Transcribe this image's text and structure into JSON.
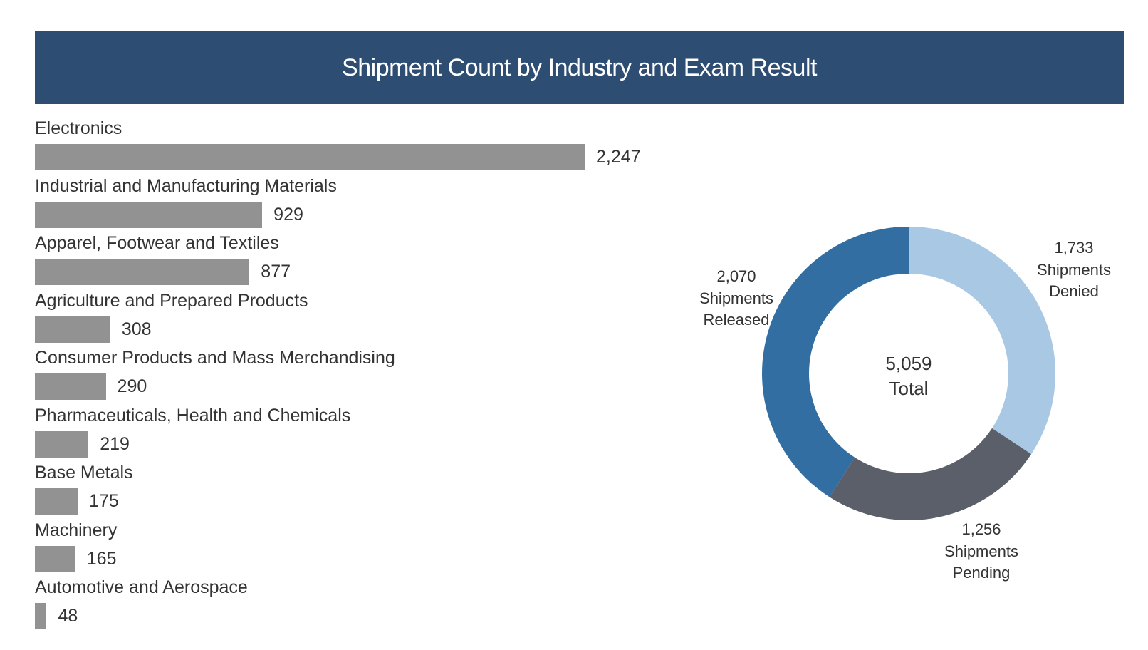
{
  "header": {
    "title": "Shipment Count by Industry and Exam Result"
  },
  "chart_data": [
    {
      "type": "bar",
      "orientation": "horizontal",
      "categories": [
        "Electronics",
        "Industrial and Manufacturing Materials",
        "Apparel, Footwear and Textiles",
        "Agriculture and Prepared Products",
        "Consumer Products and Mass Merchandising",
        "Pharmaceuticals, Health and Chemicals",
        "Base Metals",
        "Machinery",
        "Automotive and Aerospace"
      ],
      "values": [
        2247,
        929,
        877,
        308,
        290,
        219,
        175,
        165,
        48
      ],
      "value_labels": [
        "2,247",
        "929",
        "877",
        "308",
        "290",
        "219",
        "175",
        "165",
        "48"
      ],
      "bar_color": "#929292"
    },
    {
      "type": "pie",
      "donut": true,
      "slices": [
        {
          "value": 1733,
          "value_label": "1,733",
          "label": "Shipments Denied",
          "color": "#a9c8e4"
        },
        {
          "value": 1256,
          "value_label": "1,256",
          "label": "Shipments Pending",
          "color": "#5a5f6a"
        },
        {
          "value": 2070,
          "value_label": "2,070",
          "label": "Shipments Released",
          "color": "#336ea3"
        }
      ],
      "center": {
        "value": "5,059",
        "label": "Total"
      }
    }
  ]
}
